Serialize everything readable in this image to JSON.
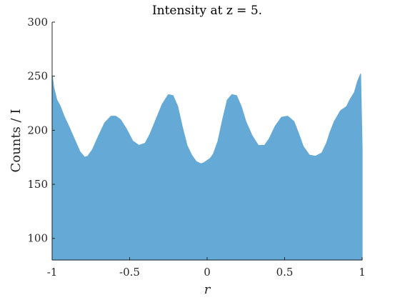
{
  "chart_data": {
    "type": "area",
    "title": "Intensity at z = 5.",
    "xlabel": "r",
    "ylabel": "Counts / I",
    "xlim": [
      -1,
      1
    ],
    "ylim": [
      80,
      300
    ],
    "x_ticks": [
      -1,
      -0.5,
      0,
      0.5,
      1
    ],
    "x_tick_labels": [
      "-1",
      "-0.5",
      "0",
      "0.5",
      "1"
    ],
    "y_ticks": [
      100,
      150,
      200,
      250,
      300
    ],
    "y_tick_labels": [
      "100",
      "150",
      "200",
      "250",
      "300"
    ],
    "grid": false,
    "fill_color": "#65a9d7",
    "series": [
      {
        "x": [
          -1.0,
          -0.99,
          -0.97,
          -0.95,
          -0.92,
          -0.9,
          -0.86,
          -0.82,
          -0.79,
          -0.77,
          -0.74,
          -0.7,
          -0.66,
          -0.62,
          -0.59,
          -0.56,
          -0.52,
          -0.48,
          -0.44,
          -0.4,
          -0.37,
          -0.33,
          -0.29,
          -0.25,
          -0.22,
          -0.19,
          -0.16,
          -0.13,
          -0.1,
          -0.07,
          -0.04,
          -0.02,
          0.0,
          0.02,
          0.04,
          0.07,
          0.1,
          0.13,
          0.16,
          0.19,
          0.22,
          0.25,
          0.29,
          0.33,
          0.37,
          0.4,
          0.44,
          0.48,
          0.52,
          0.56,
          0.59,
          0.62,
          0.66,
          0.7,
          0.74,
          0.77,
          0.79,
          0.82,
          0.86,
          0.9,
          0.92,
          0.95,
          0.97,
          0.99,
          1.0
        ],
        "y": [
          251,
          240,
          228,
          223,
          212,
          206,
          193,
          180,
          175,
          176,
          182,
          195,
          207,
          213,
          213,
          210,
          201,
          190,
          186,
          188,
          196,
          210,
          224,
          233,
          232,
          222,
          203,
          186,
          177,
          171,
          169,
          170,
          172,
          174,
          178,
          190,
          210,
          228,
          233,
          232,
          222,
          208,
          195,
          186,
          186,
          192,
          204,
          212,
          213,
          208,
          197,
          185,
          177,
          176,
          179,
          188,
          197,
          208,
          218,
          222,
          228,
          235,
          245,
          252,
          184
        ]
      }
    ]
  }
}
